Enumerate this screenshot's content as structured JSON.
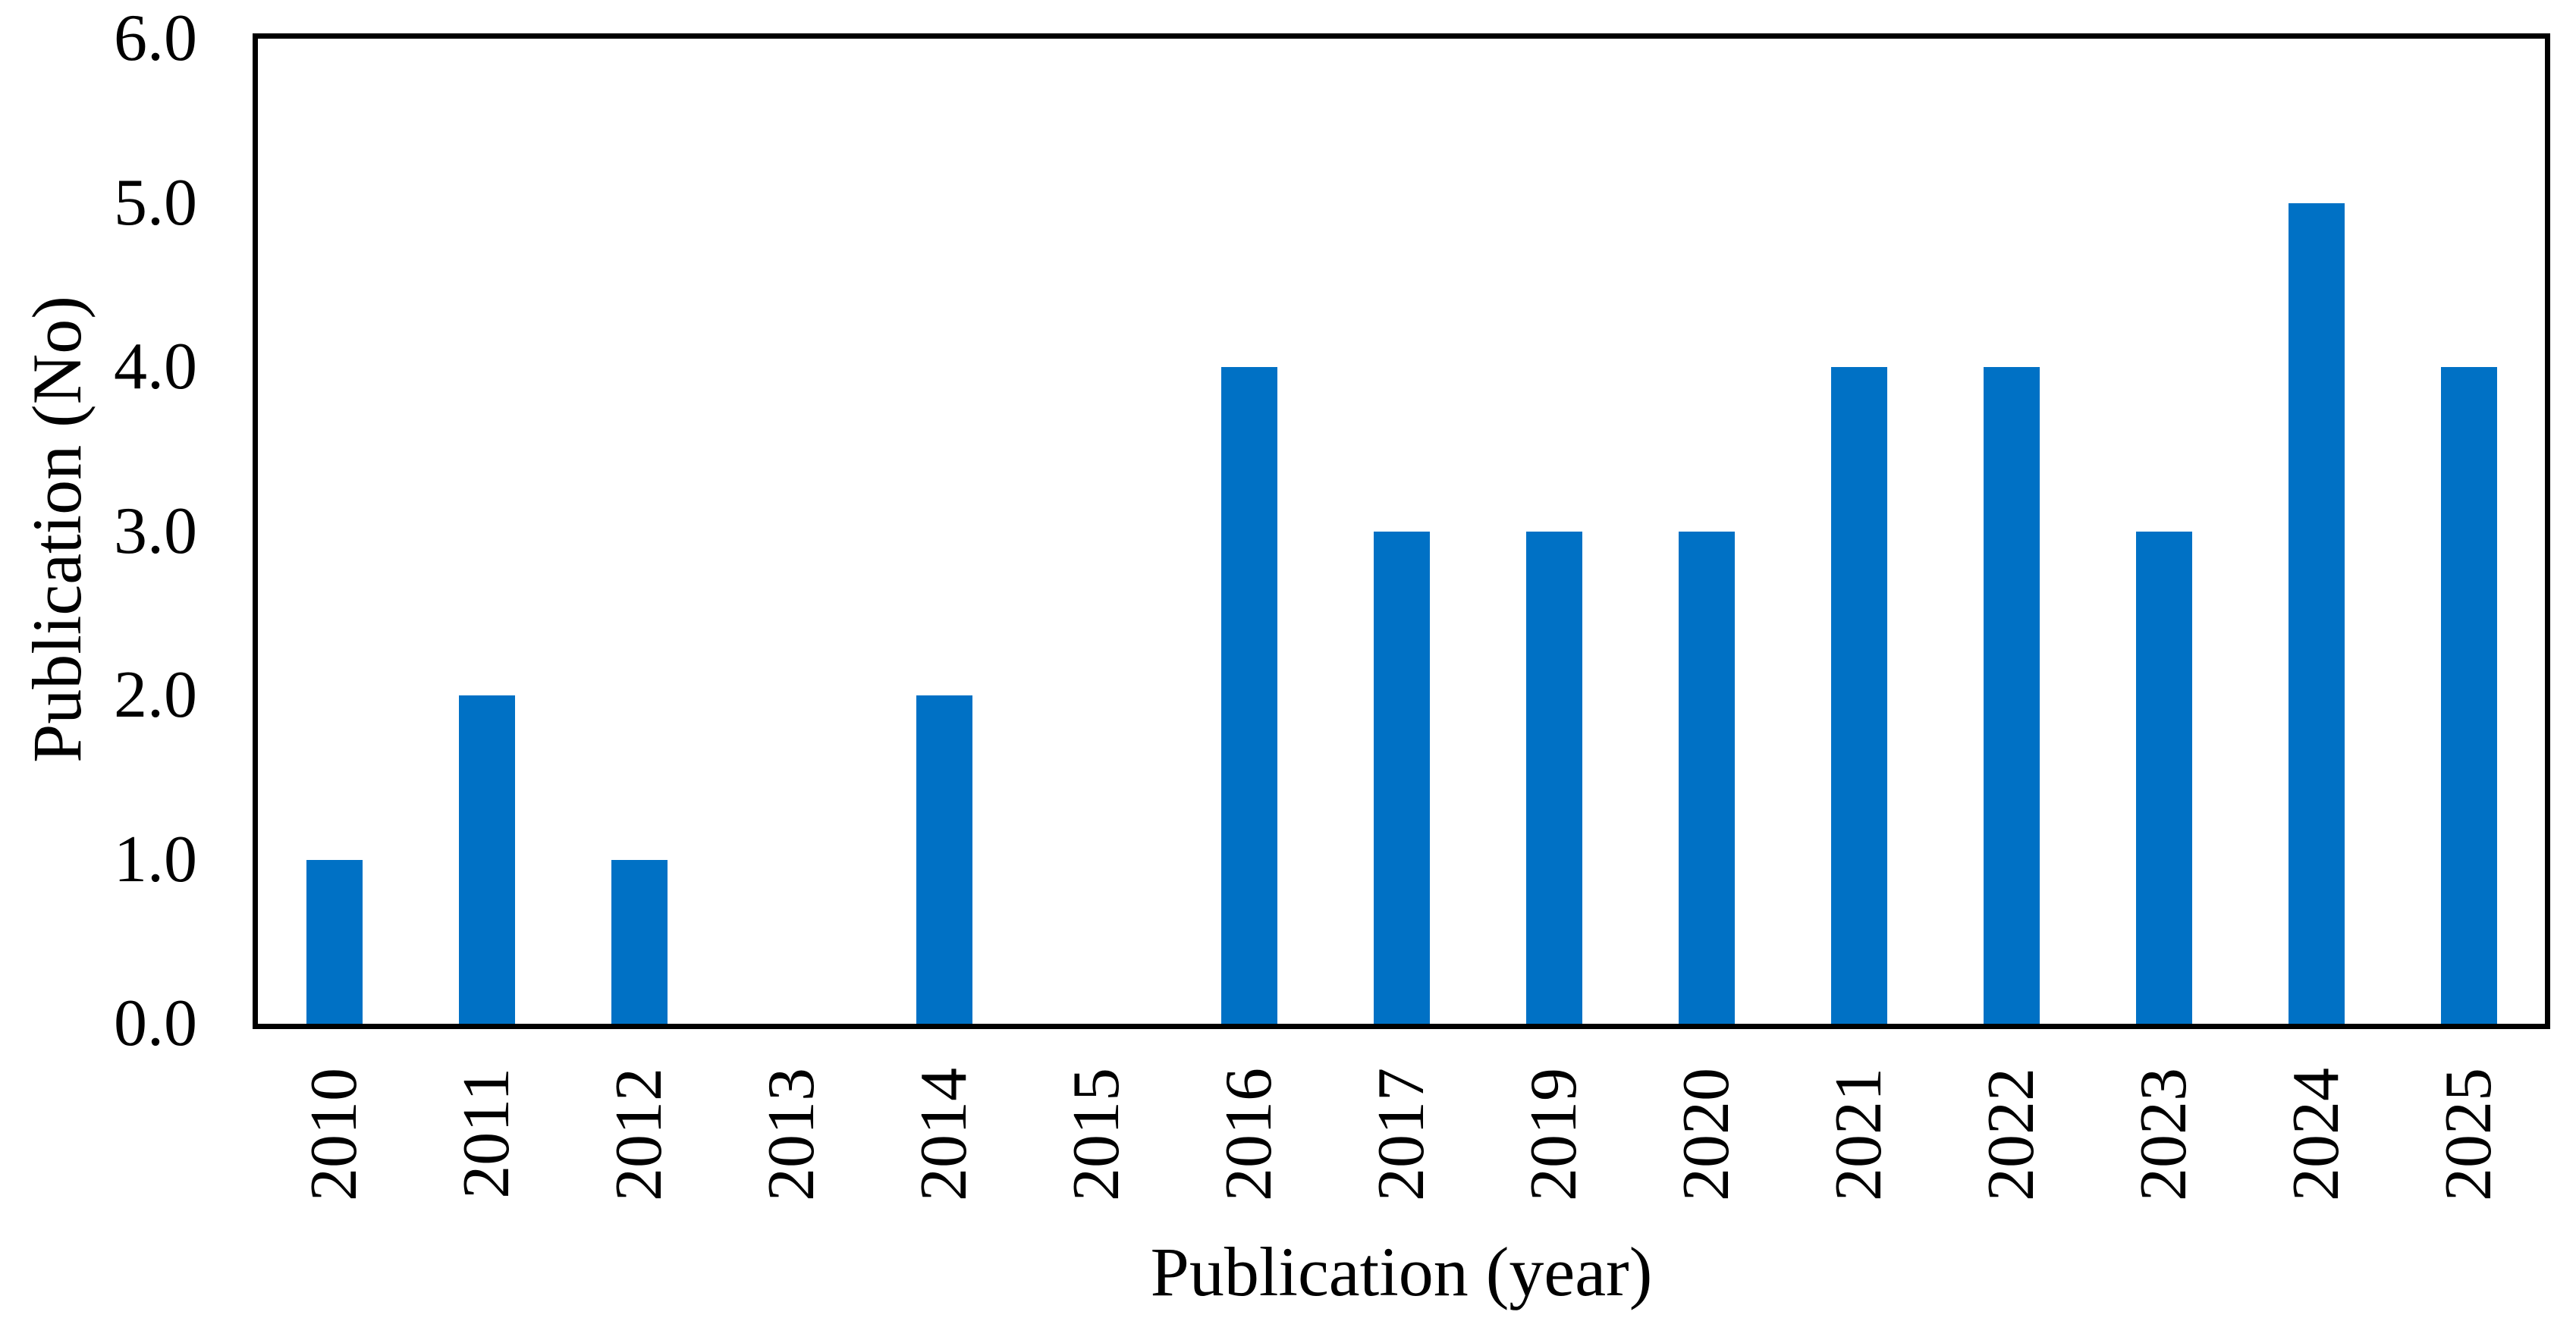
{
  "chart_data": {
    "type": "bar",
    "title": "",
    "xlabel": "Publication (year)",
    "ylabel": "Publication (No)",
    "categories": [
      "2010",
      "2011",
      "2012",
      "2013",
      "2014",
      "2015",
      "2016",
      "2017",
      "2019",
      "2020",
      "2021",
      "2022",
      "2023",
      "2024",
      "2025"
    ],
    "values": [
      1,
      2,
      1,
      0,
      2,
      0,
      4,
      3,
      3,
      3,
      4,
      4,
      3,
      5,
      4
    ],
    "ylim": [
      0,
      6
    ],
    "ytick_labels": [
      "0.0",
      "1.0",
      "2.0",
      "3.0",
      "4.0",
      "5.0",
      "6.0"
    ],
    "grid": false,
    "legend": "none",
    "bar_color": "#0071C5",
    "axis_frame_color": "#000000",
    "text_color": "#000000",
    "plot_background": "#ffffff"
  }
}
